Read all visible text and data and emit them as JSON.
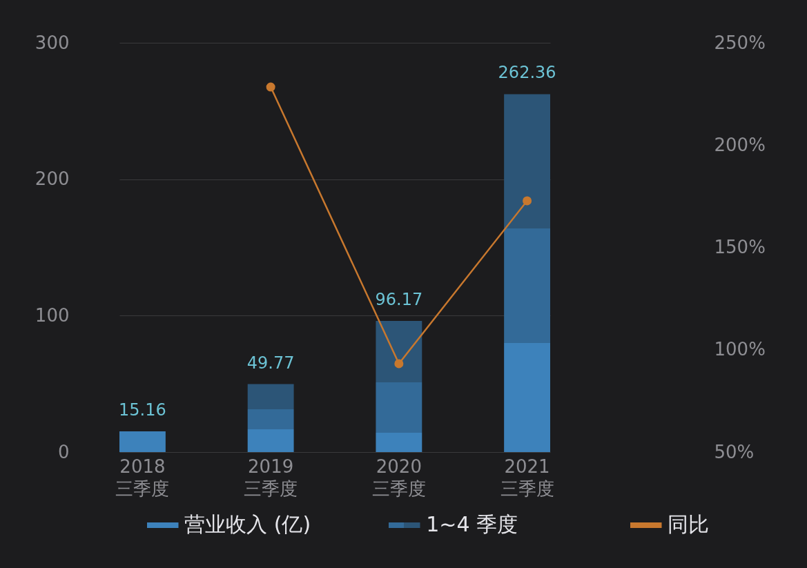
{
  "chart_data": {
    "type": "bar",
    "stacked": true,
    "categories": [
      "2018\n三季度",
      "2019\n三季度",
      "2020\n三季度",
      "2021\n三季度"
    ],
    "series": [
      {
        "name": "营业收入 (亿)",
        "color": "#3d82bb",
        "values": [
          15.16,
          16.7,
          14.2,
          79.9
        ]
      },
      {
        "name": "1~4 季度",
        "color": "#336a98",
        "values": [
          null,
          14.7,
          36.9,
          84.0
        ]
      },
      {
        "color": "#2c5577",
        "values": [
          null,
          18.37,
          45.07,
          98.46
        ]
      },
      {
        "name": "同比",
        "type": "line",
        "axis": "y2",
        "color": "#c8782e",
        "values": [
          null,
          228.4,
          93.2,
          172.8
        ]
      }
    ],
    "totals": [
      "15.16",
      "49.77",
      "96.17",
      "262.36"
    ],
    "ylim": [
      0,
      300
    ],
    "yticks": [
      0,
      100,
      200,
      300
    ],
    "y2lim": [
      50,
      250
    ],
    "y2ticks": [
      {
        "value": 50,
        "label": "50%"
      },
      {
        "value": 100,
        "label": "100%"
      },
      {
        "value": 150,
        "label": "150%"
      },
      {
        "value": 200,
        "label": "200%"
      },
      {
        "value": 250,
        "label": "250%"
      }
    ],
    "grid": "y",
    "legend": "bottom",
    "marker": "circle"
  }
}
